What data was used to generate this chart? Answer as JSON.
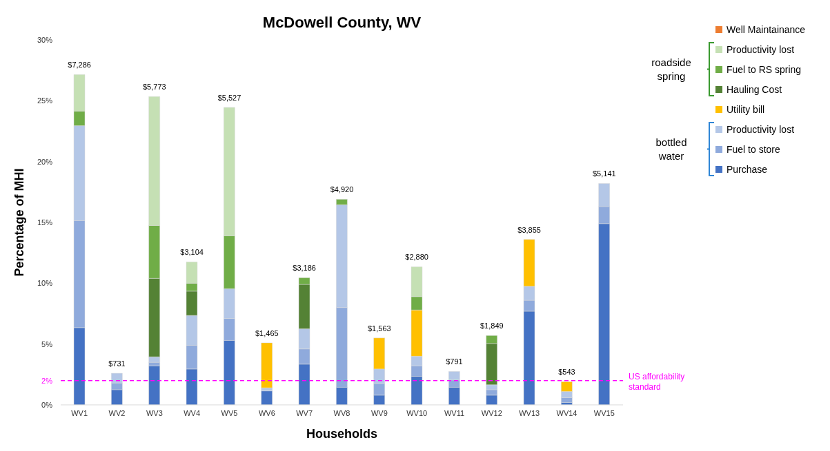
{
  "chart_data": {
    "type": "bar",
    "stacked": true,
    "title": "McDowell County, WV",
    "xlabel": "Households",
    "ylabel": "Percentage of MHI",
    "categories": [
      "WV1",
      "WV2",
      "WV3",
      "WV4",
      "WV5",
      "WV6",
      "WV7",
      "WV8",
      "WV9",
      "WV10",
      "WV11",
      "WV12",
      "WV13",
      "WV14",
      "WV15"
    ],
    "series": [
      {
        "name": "Purchase",
        "color": "#4472c4",
        "values": [
          6.35,
          1.25,
          3.2,
          2.95,
          5.3,
          1.15,
          3.35,
          1.45,
          0.8,
          2.35,
          1.45,
          0.8,
          7.7,
          0.2,
          14.9
        ]
      },
      {
        "name": "Fuel to store",
        "color": "#8faadc",
        "values": [
          8.8,
          0.55,
          0.3,
          1.95,
          1.8,
          null,
          1.25,
          6.55,
          0.95,
          0.85,
          0.6,
          0.45,
          0.9,
          0.4,
          1.4
        ]
      },
      {
        "name": "Productivity lost",
        "color": "#b4c7e7",
        "values": [
          7.8,
          0.8,
          0.45,
          2.45,
          2.45,
          0.25,
          1.65,
          8.45,
          1.2,
          0.8,
          0.7,
          0.4,
          1.15,
          0.5,
          1.9
        ]
      },
      {
        "name": "Utility bill",
        "color": "#ffc000",
        "values": [
          null,
          null,
          null,
          null,
          null,
          3.7,
          null,
          null,
          2.55,
          3.8,
          null,
          null,
          3.85,
          0.8,
          null
        ]
      },
      {
        "name": "Hauling Cost",
        "color": "#548235",
        "values": [
          null,
          null,
          6.45,
          2.0,
          null,
          null,
          3.65,
          null,
          null,
          null,
          null,
          3.4,
          null,
          null,
          null
        ]
      },
      {
        "name": "Fuel to RS spring",
        "color": "#70ad47",
        "values": [
          1.2,
          null,
          4.35,
          0.65,
          4.35,
          null,
          0.55,
          0.45,
          null,
          1.1,
          null,
          0.65,
          null,
          null,
          null
        ]
      },
      {
        "name": "Productivity lost",
        "color": "#c5e0b4",
        "values": [
          3.0,
          null,
          10.6,
          1.75,
          10.55,
          null,
          null,
          null,
          null,
          2.45,
          null,
          null,
          null,
          null,
          null
        ]
      },
      {
        "name": "Well Maintainance",
        "color": "#ed7d31",
        "values": [
          null,
          null,
          null,
          null,
          null,
          null,
          null,
          null,
          null,
          null,
          null,
          null,
          null,
          null,
          null
        ]
      }
    ],
    "ylim": [
      0,
      30
    ],
    "yticks": [
      {
        "value": 0,
        "label": "0%"
      },
      {
        "value": 2,
        "label": "2%"
      },
      {
        "value": 5,
        "label": "5%"
      },
      {
        "value": 10,
        "label": "10%"
      },
      {
        "value": 15,
        "label": "15%"
      },
      {
        "value": 20,
        "label": "20%"
      },
      {
        "value": 25,
        "label": "25%"
      },
      {
        "value": 30,
        "label": "30%"
      }
    ],
    "ref_lines": [
      {
        "axis": "y",
        "value": 2,
        "label": "US affordability standard",
        "color": "#ff00ff",
        "line_style": "dashed"
      }
    ],
    "annotations": [
      "roadside spring",
      "bottled water",
      {
        "text": "$7,286",
        "x": "WV1",
        "y": 27.15
      },
      {
        "text": "$731",
        "x": "WV2",
        "y": 2.6
      },
      {
        "text": "$5,773",
        "x": "WV3",
        "y": 25.35
      },
      {
        "text": "$3,104",
        "x": "WV4",
        "y": 11.75
      },
      {
        "text": "$5,527",
        "x": "WV5",
        "y": 24.45
      },
      {
        "text": "$1,465",
        "x": "WV6",
        "y": 5.1
      },
      {
        "text": "$3,186",
        "x": "WV7",
        "y": 10.45
      },
      {
        "text": "$4,920",
        "x": "WV8",
        "y": 16.9
      },
      {
        "text": "$1,563",
        "x": "WV9",
        "y": 5.5
      },
      {
        "text": "$2,880",
        "x": "WV10",
        "y": 11.35
      },
      {
        "text": "$791",
        "x": "WV11",
        "y": 2.75
      },
      {
        "text": "$1,849",
        "x": "WV12",
        "y": 5.7
      },
      {
        "text": "$3,855",
        "x": "WV13",
        "y": 13.6
      },
      {
        "text": "$543",
        "x": "WV14",
        "y": 1.9
      },
      {
        "text": "$5,141",
        "x": "WV15",
        "y": 18.2
      }
    ],
    "legend": "top right"
  }
}
